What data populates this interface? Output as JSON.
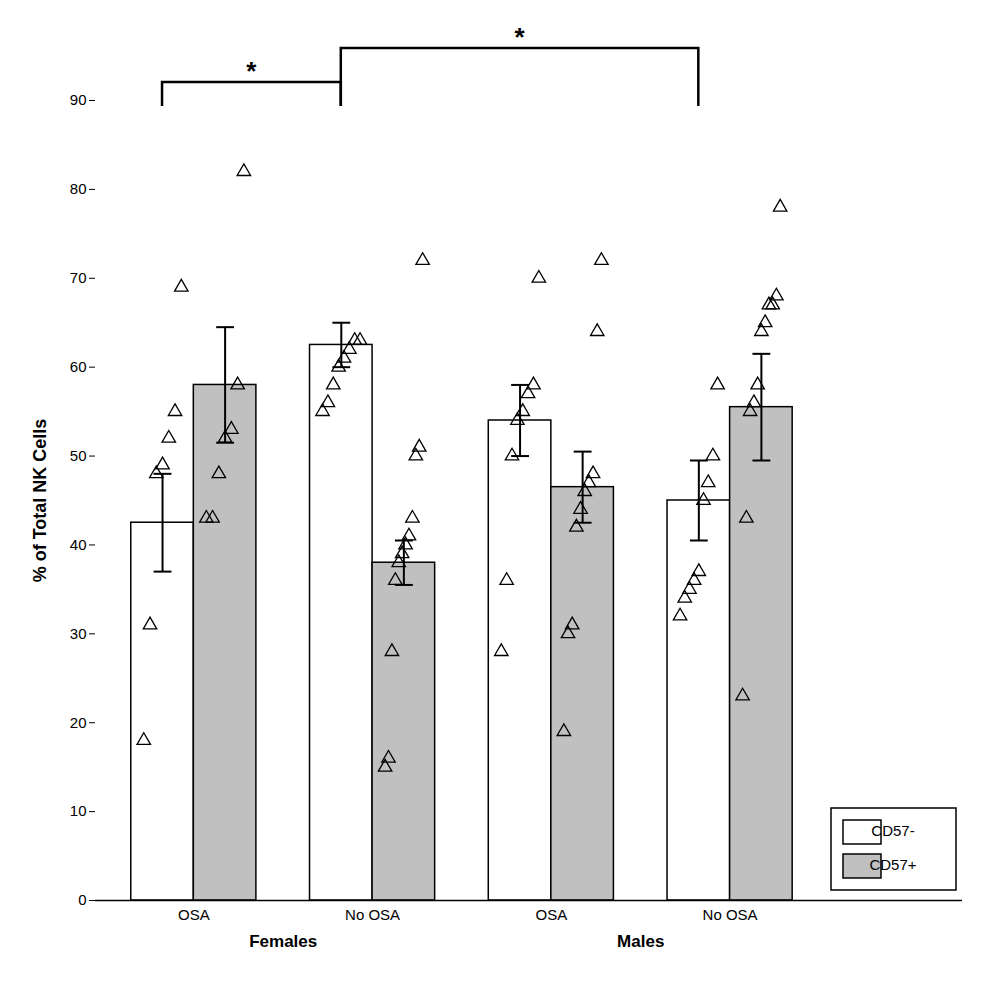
{
  "chart_data": {
    "type": "bar",
    "ylabel": "% of Total NK Cells",
    "categories": [
      "OSA",
      "No OSA",
      "OSA",
      "No OSA"
    ],
    "category_groups": [
      {
        "name": "Females",
        "categories": [
          "OSA",
          "No OSA"
        ]
      },
      {
        "name": "Males",
        "categories": [
          "OSA",
          "No OSA"
        ]
      }
    ],
    "series": [
      {
        "name": "CD57-",
        "color": "#ffffff",
        "marker": "triangle",
        "values": [
          42.5,
          62.5,
          54.0,
          45.0
        ],
        "errors": [
          5.5,
          2.5,
          4.0,
          4.5
        ],
        "points": [
          [
            18,
            31,
            48,
            49,
            52,
            55,
            69
          ],
          [
            55,
            56,
            58,
            60,
            61,
            62,
            63,
            63
          ],
          [
            28,
            36,
            50,
            54,
            55,
            57,
            58,
            70
          ],
          [
            32,
            34,
            35,
            36,
            37,
            45,
            47,
            50,
            58
          ]
        ]
      },
      {
        "name": "CD57+",
        "color": "#c0c0c0",
        "marker": "triangle",
        "values": [
          58.0,
          38.0,
          46.5,
          55.5
        ],
        "errors": [
          6.5,
          2.5,
          4.0,
          6.0
        ],
        "points": [
          [
            43,
            43,
            48,
            52,
            53,
            58,
            82
          ],
          [
            15,
            16,
            28,
            36,
            38,
            39,
            40,
            41,
            43,
            50,
            51,
            72
          ],
          [
            19,
            30,
            31,
            42,
            44,
            46,
            47,
            48,
            64,
            72
          ],
          [
            23,
            43,
            55,
            56,
            58,
            64,
            65,
            67,
            67,
            68,
            78
          ]
        ]
      }
    ],
    "annotations": [
      {
        "text": "*",
        "series": "CD57-",
        "between": [
          0,
          1
        ]
      },
      {
        "text": "*",
        "series": "CD57-",
        "between": [
          1,
          3
        ]
      }
    ],
    "ylim": [
      0,
      90
    ],
    "yticks": [
      0,
      10,
      20,
      30,
      40,
      50,
      60,
      70,
      80,
      90
    ],
    "grid": false,
    "legend": "lower right"
  }
}
